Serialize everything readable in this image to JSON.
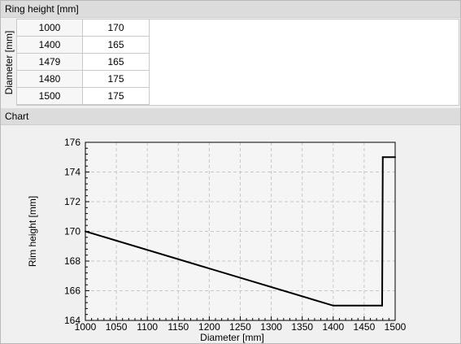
{
  "ring_height_section": {
    "title": "Ring height [mm]",
    "row_header": "Diameter [mm]",
    "rows": [
      {
        "diameter": "1000",
        "height": "170"
      },
      {
        "diameter": "1400",
        "height": "165"
      },
      {
        "diameter": "1479",
        "height": "165"
      },
      {
        "diameter": "1480",
        "height": "175"
      },
      {
        "diameter": "1500",
        "height": "175"
      }
    ]
  },
  "chart_section": {
    "title": "Chart"
  },
  "chart_data": {
    "type": "line",
    "xlabel": "Diameter [mm]",
    "ylabel": "Rim height [mm]",
    "xlim": [
      1000,
      1500
    ],
    "ylim": [
      164,
      176
    ],
    "xticks": [
      1000,
      1050,
      1100,
      1150,
      1200,
      1250,
      1300,
      1350,
      1400,
      1450,
      1500
    ],
    "yticks": [
      164,
      166,
      168,
      170,
      172,
      174,
      176
    ],
    "grid": true,
    "series": [
      {
        "x": [
          1000,
          1400,
          1479,
          1480,
          1500
        ],
        "y": [
          170,
          165,
          165,
          175,
          175
        ]
      }
    ],
    "colors": {
      "line": "#000000",
      "plot_bg": "#f5f5f5",
      "grid": "#c8c8c8"
    }
  }
}
